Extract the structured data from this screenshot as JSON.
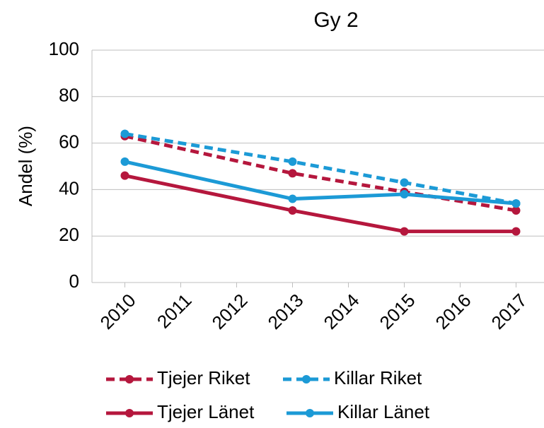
{
  "chart_data": {
    "type": "line",
    "title": "Gy 2",
    "y_label": "Andel (%)",
    "x": [
      2010,
      2013,
      2015,
      2017
    ],
    "xlim": [
      2009.5,
      2017.5
    ],
    "xticks": [
      2010,
      2011,
      2012,
      2013,
      2014,
      2015,
      2016,
      2017
    ],
    "ylim": [
      0,
      100
    ],
    "yticks": [
      0,
      20,
      40,
      60,
      80,
      100
    ],
    "grid": true,
    "series": [
      {
        "name": "Tjejer Riket",
        "color": "#b5173d",
        "linestyle": "dashed",
        "values": [
          63,
          47,
          39,
          31
        ]
      },
      {
        "name": "Killar Riket",
        "color": "#1c9ad6",
        "linestyle": "dashed",
        "values": [
          64,
          52,
          43,
          34
        ]
      },
      {
        "name": "Tjejer Länet",
        "color": "#b5173d",
        "linestyle": "solid",
        "values": [
          46,
          31,
          22,
          22
        ]
      },
      {
        "name": "Killar Länet",
        "color": "#1c9ad6",
        "linestyle": "solid",
        "values": [
          52,
          36,
          38,
          34
        ]
      }
    ]
  }
}
